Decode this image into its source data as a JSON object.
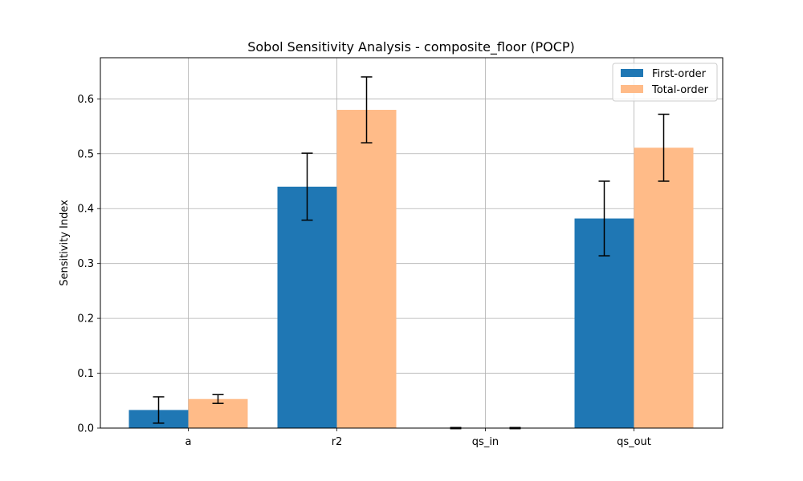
{
  "chart_data": {
    "type": "bar",
    "title": "Sobol Sensitivity Analysis - composite_floor (POCP)",
    "xlabel": "",
    "ylabel": "Sensitivity Index",
    "categories": [
      "a",
      "r2",
      "qs_in",
      "qs_out"
    ],
    "ylim": [
      0.0,
      0.675
    ],
    "yticks": [
      "0.0",
      "0.1",
      "0.2",
      "0.3",
      "0.4",
      "0.5",
      "0.6"
    ],
    "grid": true,
    "legend_position": "top-right",
    "series": [
      {
        "name": "First-order",
        "color": "#1f77b4",
        "values": [
          0.033,
          0.44,
          0.0,
          0.382
        ],
        "error": [
          0.024,
          0.061,
          0.001,
          0.068
        ]
      },
      {
        "name": "Total-order",
        "color": "#ffbb88",
        "values": [
          0.053,
          0.58,
          0.0,
          0.511
        ],
        "error": [
          0.008,
          0.06,
          0.001,
          0.061
        ]
      }
    ]
  }
}
